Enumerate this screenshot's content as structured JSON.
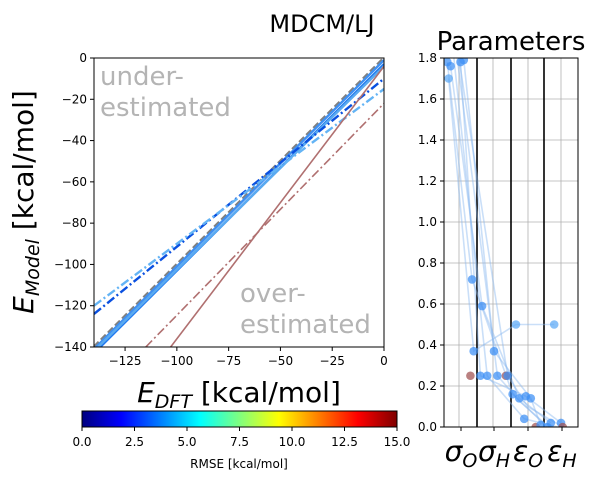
{
  "figure": {
    "suptitle": "MDCM/LJ"
  },
  "chart_data": [
    {
      "type": "line",
      "xlabel": "E_DFT [kcal/mol]",
      "ylabel": "E_Model [kcal/mol]",
      "xlim": [
        -140,
        0
      ],
      "ylim": [
        -140,
        0
      ],
      "xticks": [
        -125,
        -100,
        -75,
        -50,
        -25,
        0
      ],
      "yticks": [
        -140,
        -120,
        -100,
        -80,
        -60,
        -40,
        -20,
        0
      ],
      "annotations": [
        "under-\nestimated",
        "over-\nestimated"
      ],
      "series": [
        {
          "style": "dashed",
          "color": "#808080",
          "x": [
            -140,
            0
          ],
          "y": [
            -140,
            0
          ]
        },
        {
          "style": "solid",
          "color": "#3f8ff0",
          "x": [
            -140,
            0
          ],
          "y": [
            -141,
            -1
          ]
        },
        {
          "style": "solid",
          "color": "#1e78f0",
          "x": [
            -140,
            0
          ],
          "y": [
            -143,
            -3
          ]
        },
        {
          "style": "solid",
          "color": "#5aaaf0",
          "x": [
            -138,
            0
          ],
          "y": [
            -140,
            -4
          ]
        },
        {
          "style": "dashdot",
          "color": "#0a50e0",
          "x": [
            -140,
            0
          ],
          "y": [
            -124,
            -10
          ]
        },
        {
          "style": "dashdot",
          "color": "#64b4f5",
          "x": [
            -140,
            0
          ],
          "y": [
            -120,
            -15
          ]
        },
        {
          "style": "solid",
          "color": "#b07070",
          "x": [
            -103,
            0
          ],
          "y": [
            -140,
            -4
          ]
        },
        {
          "style": "dashdot",
          "color": "#b07070",
          "x": [
            -115,
            0
          ],
          "y": [
            -140,
            -22
          ]
        }
      ]
    },
    {
      "type": "scatter",
      "title": "Parameters",
      "categories": [
        "σ_O",
        "σ_H",
        "ε_O",
        "ε_H"
      ],
      "ylim": [
        0,
        1.8
      ],
      "yticks": [
        0.0,
        0.2,
        0.4,
        0.6,
        0.8,
        1.0,
        1.2,
        1.4,
        1.6,
        1.8
      ],
      "points": [
        {
          "x": 0.1,
          "y": 1.78,
          "c": "#3c8ff5"
        },
        {
          "x": 0.2,
          "y": 1.76,
          "c": "#3c8ff5"
        },
        {
          "x": 0.14,
          "y": 1.7,
          "c": "#5aa8f5"
        },
        {
          "x": 0.5,
          "y": 1.78,
          "c": "#3c8ff5"
        },
        {
          "x": 0.6,
          "y": 1.79,
          "c": "#3c8ff5"
        },
        {
          "x": 0.85,
          "y": 0.72,
          "c": "#3c8ff5"
        },
        {
          "x": 1.15,
          "y": 0.59,
          "c": "#3c8ff5"
        },
        {
          "x": 0.9,
          "y": 0.37,
          "c": "#3c8ff5"
        },
        {
          "x": 1.1,
          "y": 0.25,
          "c": "#3c8ff5"
        },
        {
          "x": 0.8,
          "y": 0.25,
          "c": "#a05050"
        },
        {
          "x": 1.3,
          "y": 0.25,
          "c": "#3c8ff5"
        },
        {
          "x": 1.5,
          "y": 0.37,
          "c": "#3c8ff5"
        },
        {
          "x": 1.6,
          "y": 0.25,
          "c": "#3c8ff5"
        },
        {
          "x": 1.85,
          "y": 0.25,
          "c": "#a05050"
        },
        {
          "x": 1.9,
          "y": 0.25,
          "c": "#3c8ff5"
        },
        {
          "x": 2.05,
          "y": 0.16,
          "c": "#3c8ff5"
        },
        {
          "x": 2.15,
          "y": 0.5,
          "c": "#5aa8f5"
        },
        {
          "x": 2.25,
          "y": 0.14,
          "c": "#3c8ff5"
        },
        {
          "x": 2.45,
          "y": 0.15,
          "c": "#3c8ff5"
        },
        {
          "x": 2.6,
          "y": 0.14,
          "c": "#3c8ff5"
        },
        {
          "x": 2.4,
          "y": 0.04,
          "c": "#3c8ff5"
        },
        {
          "x": 2.75,
          "y": 0.0,
          "c": "#a05050"
        },
        {
          "x": 2.9,
          "y": 0.01,
          "c": "#3c8ff5"
        },
        {
          "x": 3.1,
          "y": 0.0,
          "c": "#3c8ff5"
        },
        {
          "x": 3.2,
          "y": 0.02,
          "c": "#3c8ff5"
        },
        {
          "x": 3.3,
          "y": 0.5,
          "c": "#5aa8f5"
        },
        {
          "x": 3.5,
          "y": 0.02,
          "c": "#3c8ff5"
        },
        {
          "x": 3.55,
          "y": 0.0,
          "c": "#a05050"
        }
      ],
      "paths": [
        [
          [
            0.1,
            1.78
          ],
          [
            0.85,
            0.72
          ],
          [
            2.05,
            0.16
          ],
          [
            3.1,
            0.0
          ]
        ],
        [
          [
            0.2,
            1.76
          ],
          [
            1.15,
            0.59
          ],
          [
            2.25,
            0.14
          ],
          [
            3.2,
            0.02
          ]
        ],
        [
          [
            0.14,
            1.7
          ],
          [
            0.9,
            0.37
          ],
          [
            2.15,
            0.5
          ],
          [
            3.3,
            0.5
          ]
        ],
        [
          [
            0.5,
            1.78
          ],
          [
            1.1,
            0.25
          ],
          [
            2.45,
            0.15
          ],
          [
            3.5,
            0.02
          ]
        ],
        [
          [
            0.6,
            1.79
          ],
          [
            1.5,
            0.37
          ],
          [
            2.6,
            0.14
          ],
          [
            2.9,
            0.01
          ]
        ],
        [
          [
            0.3,
            1.8
          ],
          [
            1.3,
            0.25
          ],
          [
            2.4,
            0.04
          ],
          [
            3.4,
            0.0
          ]
        ],
        [
          [
            0.4,
            1.8
          ],
          [
            1.6,
            0.25
          ],
          [
            2.3,
            0.12
          ],
          [
            3.0,
            0.02
          ]
        ],
        [
          [
            0.45,
            1.8
          ],
          [
            1.9,
            0.25
          ],
          [
            2.5,
            0.1
          ],
          [
            3.45,
            0.01
          ]
        ]
      ]
    }
  ],
  "colorbar": {
    "label": "RMSE [kcal/mol]",
    "range": [
      0,
      15
    ],
    "ticks": [
      "0.0",
      "2.5",
      "5.0",
      "7.5",
      "10.0",
      "12.5",
      "15.0"
    ],
    "colors": [
      "#00007f",
      "#0000ff",
      "#007fff",
      "#00ffff",
      "#7fff7f",
      "#ffff00",
      "#ff7f00",
      "#ff0000",
      "#7f0000"
    ]
  }
}
